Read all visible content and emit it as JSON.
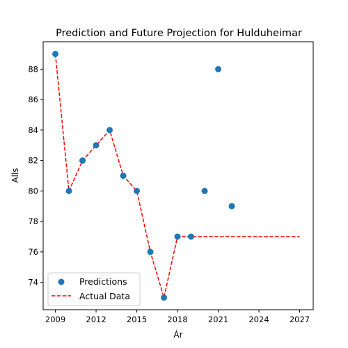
{
  "chart_data": {
    "type": "scatter",
    "title": "Prediction and Future Projection for Hulduheimar",
    "xlabel": "Ár",
    "ylabel": "Alls",
    "xlim": [
      2008.1,
      2028.0
    ],
    "ylim": [
      72.2,
      89.8
    ],
    "xticks": [
      2009,
      2012,
      2015,
      2018,
      2021,
      2024,
      2027
    ],
    "yticks": [
      74,
      76,
      78,
      80,
      82,
      84,
      86,
      88
    ],
    "grid": false,
    "legend_position": "lower-left",
    "series": [
      {
        "name": "Predictions",
        "kind": "scatter",
        "color": "#1f77b4",
        "x": [
          2009,
          2010,
          2011,
          2012,
          2013,
          2014,
          2015,
          2016,
          2017,
          2018,
          2019,
          2020,
          2021,
          2022
        ],
        "y": [
          89,
          80,
          82,
          83,
          84,
          81,
          80,
          76,
          73,
          77,
          77,
          80,
          88,
          79
        ]
      },
      {
        "name": "Actual Data",
        "kind": "dashed-line",
        "color": "#ff0000",
        "x": [
          2009,
          2010,
          2011,
          2012,
          2013,
          2014,
          2015,
          2016,
          2017,
          2018,
          2019,
          2020,
          2021,
          2022,
          2023,
          2024,
          2025,
          2026,
          2027
        ],
        "y": [
          89,
          80,
          82,
          83,
          84,
          81,
          80,
          76,
          73,
          77,
          77,
          77,
          77,
          77,
          77,
          77,
          77,
          77,
          77
        ]
      }
    ]
  }
}
